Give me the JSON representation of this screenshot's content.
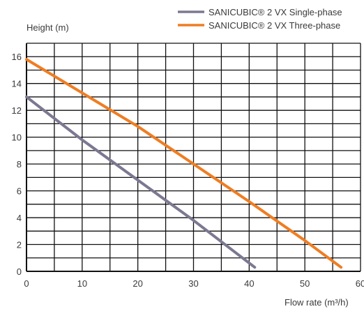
{
  "chart_data": {
    "type": "line",
    "xlabel": "Flow rate (m³/h)",
    "ylabel": "Height (m)",
    "xlim": [
      0,
      60
    ],
    "ylim": [
      0,
      17
    ],
    "x_ticks": [
      0,
      10,
      20,
      30,
      40,
      50,
      60
    ],
    "y_ticks": [
      0,
      2,
      4,
      6,
      8,
      10,
      12,
      14,
      16
    ],
    "grid": true,
    "legend_position": "top-right",
    "series": [
      {
        "name": "SANICUBIC® 2 VX Single-phase",
        "color": "#7b7891",
        "points": [
          [
            0,
            13.0
          ],
          [
            10,
            9.8
          ],
          [
            20,
            6.8
          ],
          [
            30,
            3.8
          ],
          [
            41,
            0.3
          ]
        ]
      },
      {
        "name": "SANICUBIC® 2 VX Three-phase",
        "color": "#ef7d22",
        "points": [
          [
            0,
            15.8
          ],
          [
            10,
            13.3
          ],
          [
            20,
            10.8
          ],
          [
            30,
            8.0
          ],
          [
            40,
            5.2
          ],
          [
            50,
            2.3
          ],
          [
            56.5,
            0.3
          ]
        ]
      }
    ]
  }
}
